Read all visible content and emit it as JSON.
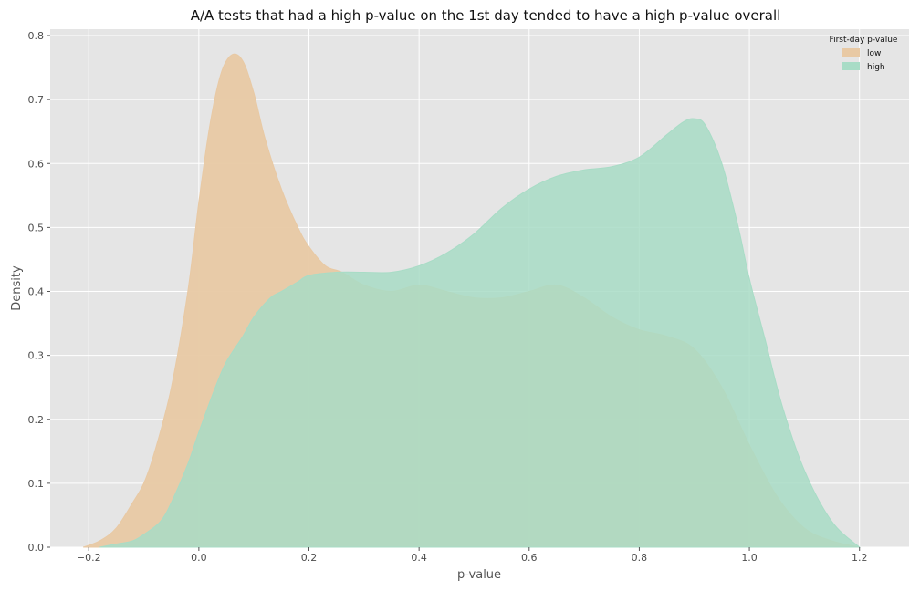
{
  "chart_data": {
    "type": "area",
    "title": "A/A tests that had a high p-value on the 1st day tended to have a high p-value overall",
    "xlabel": "p-value",
    "ylabel": "Density",
    "xlim": [
      -0.27,
      1.29
    ],
    "ylim": [
      0,
      0.81
    ],
    "xticks": [
      -0.2,
      0.0,
      0.2,
      0.4,
      0.6,
      0.8,
      1.0,
      1.2
    ],
    "xtick_labels": [
      "−0.2",
      "0.0",
      "0.2",
      "0.4",
      "0.6",
      "0.8",
      "1.0",
      "1.2"
    ],
    "yticks": [
      0.0,
      0.1,
      0.2,
      0.3,
      0.4,
      0.5,
      0.6,
      0.7,
      0.8
    ],
    "ytick_labels": [
      "0.0",
      "0.1",
      "0.2",
      "0.3",
      "0.4",
      "0.5",
      "0.6",
      "0.7",
      "0.8"
    ],
    "grid": true,
    "legend": {
      "title": "First-day p-value",
      "placement": "top-right"
    },
    "series": [
      {
        "name": "low",
        "color": "#e8c9a4",
        "x": [
          -0.21,
          -0.18,
          -0.15,
          -0.12,
          -0.1,
          -0.08,
          -0.05,
          -0.02,
          0.0,
          0.02,
          0.04,
          0.06,
          0.08,
          0.1,
          0.12,
          0.15,
          0.18,
          0.2,
          0.23,
          0.26,
          0.3,
          0.35,
          0.4,
          0.45,
          0.5,
          0.55,
          0.6,
          0.65,
          0.7,
          0.75,
          0.8,
          0.85,
          0.9,
          0.95,
          1.0,
          1.05,
          1.1,
          1.15,
          1.2
        ],
        "y": [
          0.0,
          0.01,
          0.03,
          0.07,
          0.1,
          0.15,
          0.25,
          0.4,
          0.54,
          0.66,
          0.74,
          0.77,
          0.76,
          0.71,
          0.64,
          0.56,
          0.5,
          0.47,
          0.44,
          0.43,
          0.41,
          0.4,
          0.41,
          0.4,
          0.39,
          0.39,
          0.4,
          0.41,
          0.39,
          0.36,
          0.34,
          0.33,
          0.31,
          0.25,
          0.16,
          0.08,
          0.03,
          0.01,
          0.0
        ]
      },
      {
        "name": "high",
        "color": "#a8dcc6",
        "x": [
          -0.18,
          -0.15,
          -0.12,
          -0.1,
          -0.07,
          -0.05,
          -0.02,
          0.0,
          0.03,
          0.05,
          0.08,
          0.1,
          0.13,
          0.15,
          0.18,
          0.2,
          0.25,
          0.3,
          0.35,
          0.4,
          0.45,
          0.5,
          0.55,
          0.6,
          0.65,
          0.7,
          0.75,
          0.8,
          0.85,
          0.88,
          0.9,
          0.92,
          0.95,
          0.98,
          1.0,
          1.03,
          1.06,
          1.1,
          1.15,
          1.2
        ],
        "y": [
          0.0,
          0.005,
          0.01,
          0.02,
          0.04,
          0.07,
          0.13,
          0.18,
          0.25,
          0.29,
          0.33,
          0.36,
          0.39,
          0.4,
          0.415,
          0.425,
          0.43,
          0.43,
          0.43,
          0.44,
          0.46,
          0.49,
          0.53,
          0.56,
          0.58,
          0.59,
          0.595,
          0.61,
          0.645,
          0.665,
          0.67,
          0.66,
          0.6,
          0.5,
          0.42,
          0.32,
          0.22,
          0.12,
          0.04,
          0.0
        ]
      }
    ]
  }
}
